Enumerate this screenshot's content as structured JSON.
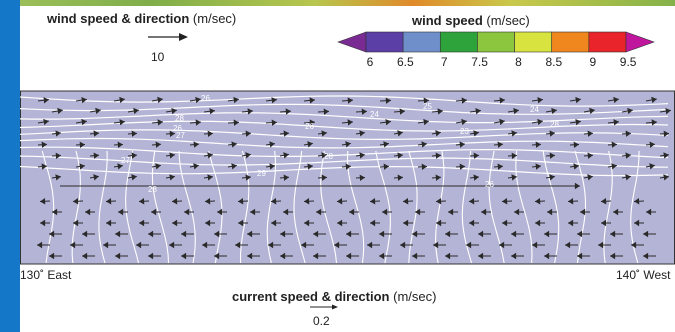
{
  "legend": {
    "wind_vector": {
      "title_bold": "wind speed & direction",
      "title_unit": "(m/sec)",
      "ref_value": "10"
    },
    "wind_speed": {
      "title_bold": "wind speed",
      "title_unit": "(m/sec)",
      "tick_labels": [
        "6",
        "6.5",
        "7",
        "7.5",
        "8",
        "8.5",
        "9",
        "9.5"
      ],
      "colors": [
        "#7a2a93",
        "#5b3ea6",
        "#6f8fcb",
        "#2ea33b",
        "#8cc63f",
        "#d8e33f",
        "#f0861e",
        "#e9242a",
        "#c0169e"
      ]
    }
  },
  "map": {
    "west_label": "130˚ East",
    "east_label": "140˚ West",
    "contour_labels": [
      "26",
      "28",
      "26",
      "27",
      "26",
      "24",
      "25",
      "23",
      "24",
      "28",
      "27",
      "28",
      "29",
      "28",
      "26"
    ],
    "field_color": "#b4b4d6"
  },
  "current_legend": {
    "title_bold": "current speed & direction",
    "title_unit": "(m/sec)",
    "ref_value": "0.2"
  }
}
